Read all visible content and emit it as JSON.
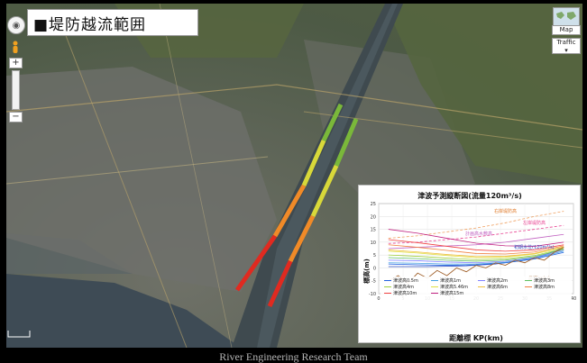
{
  "title": "■堤防越流範囲",
  "controls": {
    "pan_glyph": "◉",
    "zoom_in": "+",
    "zoom_out": "−",
    "map_type": "Map",
    "traffic": "Traffic",
    "traffic_arrow": "▾"
  },
  "watermark": "River Engineering Research Team",
  "chart_data": {
    "type": "line",
    "title": "津波予測縦断図(流量120m³/s)",
    "xlabel": "距離標 KP(km)",
    "ylabel": "標高(m)",
    "xlim": [
      0,
      40
    ],
    "ylim": [
      -10,
      25
    ],
    "xticks": [
      0,
      5,
      10,
      15,
      20,
      25,
      30,
      35,
      40
    ],
    "yticks": [
      -10,
      -5,
      0,
      5,
      10,
      15,
      20,
      25
    ],
    "annotations": [
      "右岸堤防高",
      "左岸堤防高",
      "計画高水敷高",
      "初期水位(120m³/s)",
      "最深河床高"
    ],
    "series": [
      {
        "name": "右岸堤防高",
        "color": "#f0a060",
        "x": [
          2,
          8,
          14,
          20,
          26,
          32,
          38
        ],
        "y": [
          11.5,
          12.5,
          14,
          15.5,
          17.5,
          20,
          22
        ]
      },
      {
        "name": "左岸堤防高",
        "color": "#e84090",
        "x": [
          2,
          8,
          14,
          20,
          26,
          32,
          38
        ],
        "y": [
          9.5,
          10,
          11,
          12,
          13.5,
          15,
          16.5
        ]
      },
      {
        "name": "計画高水敷高",
        "color": "#c060c0",
        "x": [
          2,
          8,
          14,
          20,
          26,
          32,
          38
        ],
        "y": [
          7.5,
          8,
          8.5,
          9,
          10,
          11.5,
          13
        ]
      },
      {
        "name": "初期水位(120m³/s)",
        "color": "#3050c0",
        "x": [
          2,
          10,
          18,
          24,
          30,
          34,
          38
        ],
        "y": [
          0.5,
          0.5,
          0.8,
          1.5,
          3,
          5,
          8
        ]
      },
      {
        "name": "津波高0.5m",
        "color": "#2060e0",
        "x": [
          2,
          8,
          14,
          20,
          26,
          32,
          38
        ],
        "y": [
          1.5,
          1.2,
          1,
          1.2,
          2,
          3.5,
          6
        ]
      },
      {
        "name": "津波高1m",
        "color": "#40a0e0",
        "x": [
          2,
          8,
          14,
          20,
          26,
          32,
          38
        ],
        "y": [
          2,
          1.8,
          1.5,
          1.5,
          2.2,
          3.8,
          6.5
        ]
      },
      {
        "name": "津波高2m",
        "color": "#8080ff",
        "x": [
          2,
          8,
          14,
          20,
          26,
          32,
          38
        ],
        "y": [
          3,
          2.8,
          2.3,
          2,
          2.6,
          4,
          7
        ]
      },
      {
        "name": "津波高3m",
        "color": "#60c060",
        "x": [
          2,
          8,
          14,
          20,
          26,
          32,
          38
        ],
        "y": [
          4,
          3.6,
          3,
          2.6,
          3,
          4.4,
          7.2
        ]
      },
      {
        "name": "津波高4m",
        "color": "#a0d040",
        "x": [
          2,
          8,
          14,
          20,
          26,
          32,
          38
        ],
        "y": [
          5,
          4.5,
          3.8,
          3.2,
          3.5,
          4.8,
          7.5
        ]
      },
      {
        "name": "津波高5.46m",
        "color": "#e0e040",
        "x": [
          2,
          8,
          14,
          20,
          26,
          32,
          38
        ],
        "y": [
          6.5,
          5.8,
          4.8,
          4,
          4.2,
          5.4,
          8
        ]
      },
      {
        "name": "津波高6m",
        "color": "#f0c040",
        "x": [
          2,
          8,
          14,
          20,
          26,
          32,
          38
        ],
        "y": [
          7,
          6.2,
          5.2,
          4.4,
          4.5,
          5.6,
          8.2
        ]
      },
      {
        "name": "津波高8m",
        "color": "#f08040",
        "x": [
          2,
          8,
          14,
          20,
          26,
          32,
          38
        ],
        "y": [
          9,
          8,
          6.8,
          5.6,
          5.4,
          6.2,
          8.6
        ]
      },
      {
        "name": "津波高10m",
        "color": "#f04040",
        "x": [
          2,
          8,
          14,
          20,
          26,
          32,
          38
        ],
        "y": [
          11,
          9.8,
          8.4,
          7,
          6.5,
          7,
          9
        ]
      },
      {
        "name": "津波高15m",
        "color": "#c02080",
        "x": [
          2,
          8,
          14,
          20,
          26,
          32,
          38
        ],
        "y": [
          15,
          13.5,
          11.5,
          9.6,
          8.6,
          8.4,
          10
        ]
      },
      {
        "name": "最深河床高",
        "color": "#a0602a",
        "x": [
          2,
          4,
          6,
          8,
          10,
          12,
          14,
          16,
          18,
          20,
          22,
          24,
          26,
          28,
          30,
          32,
          34,
          36,
          38
        ],
        "y": [
          -5,
          -3,
          -6,
          -2,
          -4,
          -1,
          -3,
          0,
          -1.5,
          1,
          0,
          2,
          1,
          3,
          2,
          4,
          3,
          6,
          8
        ]
      }
    ],
    "legend_position": "bottom"
  }
}
